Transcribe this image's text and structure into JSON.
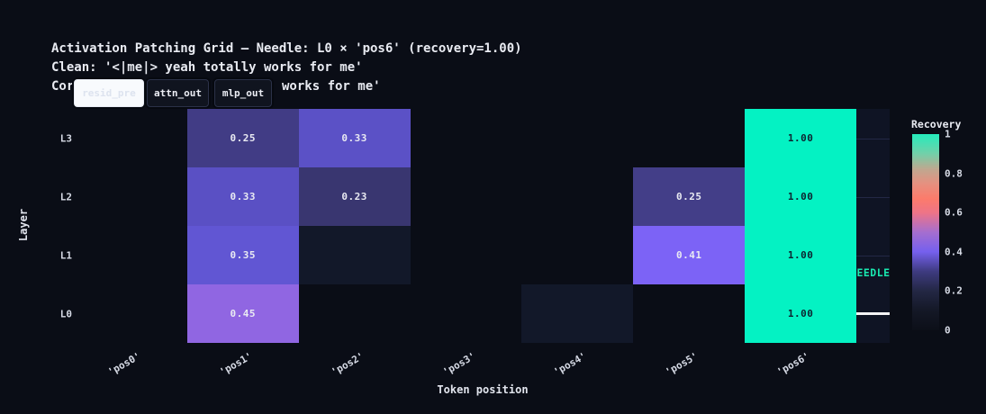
{
  "colors": {
    "figure_bg": "#0a0d16",
    "plot_bg": "#0f1424",
    "needle_green": "#04f2c3",
    "annotation_green": "#19e8b0",
    "arrow_white": "#f4f4f6",
    "gridline": "#232845",
    "active_tab_bg": "#f8fafd",
    "dark_tab_bg": "#10141f"
  },
  "title": {
    "line1": "Activation Patching Grid — Needle: L0 × 'pos6' (recovery=1.00)",
    "line2": "Clean: '<|me|> yeah totally works for me'",
    "line3_prefix": "Cor",
    "line3_suffix": "works for me'"
  },
  "tabs": [
    {
      "label": "resid_pre",
      "active": true
    },
    {
      "label": "attn_out",
      "active": false
    },
    {
      "label": "mlp_out",
      "active": false
    }
  ],
  "chart_data": {
    "type": "heatmap",
    "title": "Activation Patching Grid — Needle: L0 × 'pos6' (recovery=1.00)",
    "xlabel": "Token position",
    "ylabel": "Layer",
    "x_categories": [
      "'pos0'",
      "'pos1'",
      "'pos2'",
      "'pos3'",
      "'pos4'",
      "'pos5'",
      "'pos6'"
    ],
    "y_categories": [
      "L3",
      "L2",
      "L1",
      "L0"
    ],
    "values": [
      [
        0,
        0.25,
        0.33,
        0,
        0,
        0,
        1.0
      ],
      [
        0,
        0.33,
        0.23,
        0,
        0,
        0.25,
        1.0
      ],
      [
        0,
        0.35,
        0.05,
        0,
        0,
        0.41,
        1.0
      ],
      [
        0,
        0.45,
        0,
        0,
        0.05,
        0,
        1.0
      ]
    ],
    "cell_labels": [
      [
        null,
        "0.25",
        "0.33",
        null,
        null,
        null,
        "1.00"
      ],
      [
        null,
        "0.33",
        "0.23",
        null,
        null,
        "0.25",
        "1.00"
      ],
      [
        null,
        "0.35",
        null,
        null,
        null,
        "0.41",
        "1.00"
      ],
      [
        null,
        "0.45",
        null,
        null,
        null,
        null,
        "1.00"
      ]
    ],
    "cell_colors": [
      [
        "#0a0d16",
        "#413c85",
        "#5b51c6",
        "#0a0d16",
        "#0a0d16",
        "#0a0d16",
        "#04f2c3"
      ],
      [
        "#0a0d16",
        "#5a50c4",
        "#393670",
        "#0a0d16",
        "#0a0d16",
        "#433e88",
        "#04f2c3"
      ],
      [
        "#0a0d16",
        "#6156d3",
        "#121829",
        "#0a0d16",
        "#0a0d16",
        "#7c63f6",
        "#04f2c3"
      ],
      [
        "#0a0d16",
        "#9066e2",
        "#0a0d16",
        "#0a0d16",
        "#121829",
        "#0a0d16",
        "#04f2c3"
      ]
    ],
    "label_color_light": "#e9eaf2",
    "label_color_dark": "#0d2430",
    "grid": true,
    "annotation": {
      "label": "NEEDLE",
      "target": "L0 × 'pos6'"
    },
    "colorbar": {
      "title": "Recovery",
      "ticks": [
        {
          "label": "1",
          "value": 1.0
        },
        {
          "label": "0.8",
          "value": 0.8
        },
        {
          "label": "0.6",
          "value": 0.6
        },
        {
          "label": "0.4",
          "value": 0.4
        },
        {
          "label": "0.2",
          "value": 0.2
        },
        {
          "label": "0",
          "value": 0.0
        }
      ],
      "gradient_stops": [
        {
          "pos": 0.0,
          "color": "#0c0f18"
        },
        {
          "pos": 0.1,
          "color": "#141826"
        },
        {
          "pos": 0.2,
          "color": "#232744"
        },
        {
          "pos": 0.3,
          "color": "#3e3b80"
        },
        {
          "pos": 0.4,
          "color": "#7560ee"
        },
        {
          "pos": 0.5,
          "color": "#a56ecf"
        },
        {
          "pos": 0.6,
          "color": "#ee7487"
        },
        {
          "pos": 0.67,
          "color": "#fc7b6b"
        },
        {
          "pos": 0.75,
          "color": "#e59180"
        },
        {
          "pos": 0.82,
          "color": "#c0a78f"
        },
        {
          "pos": 0.9,
          "color": "#72d0a9"
        },
        {
          "pos": 1.0,
          "color": "#25ecbc"
        }
      ]
    }
  }
}
